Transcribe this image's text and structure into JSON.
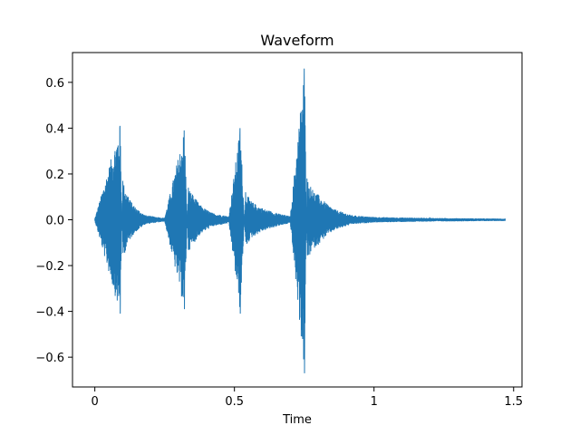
{
  "chart_data": {
    "type": "line",
    "title": "Waveform",
    "xlabel": "Time",
    "ylabel": "",
    "xlim": [
      -0.08,
      1.53
    ],
    "ylim": [
      -0.73,
      0.73
    ],
    "x_ticks": [
      0,
      0.5,
      1,
      1.5
    ],
    "x_tick_labels": [
      "0",
      "0.5",
      "1",
      "1.5"
    ],
    "y_ticks": [
      -0.6,
      -0.4,
      -0.2,
      0.0,
      0.2,
      0.4,
      0.6
    ],
    "y_tick_labels": [
      "−0.6",
      "−0.4",
      "−0.2",
      "0.0",
      "0.2",
      "0.4",
      "0.6"
    ],
    "grid": false,
    "line_color": "#1f77b4",
    "duration": 1.47,
    "series": [
      {
        "values": [
          [
            0.0,
            0.005
          ],
          [
            0.09,
            0.41
          ],
          [
            0.091,
            -0.41
          ],
          [
            0.1,
            0.17
          ],
          [
            0.12,
            0.1
          ],
          [
            0.14,
            0.06
          ],
          [
            0.18,
            0.02
          ],
          [
            0.25,
            0.008
          ],
          [
            0.32,
            0.39
          ],
          [
            0.321,
            -0.39
          ],
          [
            0.335,
            0.14
          ],
          [
            0.35,
            0.11
          ],
          [
            0.38,
            0.06
          ],
          [
            0.42,
            0.03
          ],
          [
            0.48,
            0.015
          ],
          [
            0.52,
            0.4
          ],
          [
            0.521,
            -0.41
          ],
          [
            0.54,
            0.12
          ],
          [
            0.56,
            0.08
          ],
          [
            0.6,
            0.05
          ],
          [
            0.65,
            0.03
          ],
          [
            0.7,
            0.015
          ],
          [
            0.75,
            0.66
          ],
          [
            0.751,
            -0.67
          ],
          [
            0.76,
            0.18
          ],
          [
            0.78,
            0.13
          ],
          [
            0.8,
            0.11
          ],
          [
            0.83,
            0.07
          ],
          [
            0.86,
            0.045
          ],
          [
            0.92,
            0.02
          ],
          [
            1.0,
            0.012
          ],
          [
            1.2,
            0.008
          ],
          [
            1.47,
            0.005
          ]
        ]
      }
    ]
  }
}
